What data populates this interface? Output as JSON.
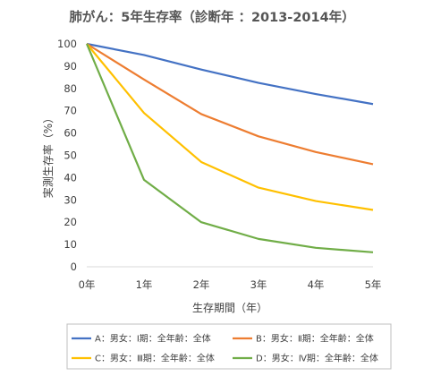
{
  "chart_data": {
    "type": "line",
    "title": "肺がん：5年生存率（診断年 ：2013-2014年）",
    "xlabel": "生存期間（年）",
    "ylabel": "実測生存率（%）",
    "categories": [
      "0年",
      "1年",
      "2年",
      "3年",
      "4年",
      "5年"
    ],
    "x": [
      0,
      1,
      2,
      3,
      4,
      5
    ],
    "yticks": [
      "0",
      "10",
      "20",
      "30",
      "40",
      "50",
      "60",
      "70",
      "80",
      "90",
      "100"
    ],
    "ylim": [
      0,
      100
    ],
    "grid": false,
    "legend_position": "bottom",
    "series": [
      {
        "name": "A：男女：Ⅰ期：全年齢：全体",
        "color": "#4472C4",
        "values": [
          100,
          95,
          88.5,
          82.5,
          77.5,
          73
        ]
      },
      {
        "name": "B：男女：Ⅱ期：全年齢：全体",
        "color": "#ED7D31",
        "values": [
          100,
          84,
          68.5,
          58.5,
          51.5,
          46
        ]
      },
      {
        "name": "C：男女：Ⅲ期：全年齢：全体",
        "color": "#FFC000",
        "values": [
          100,
          69,
          47,
          35.5,
          29.5,
          25.5
        ]
      },
      {
        "name": "D：男女：Ⅳ期：全年齢：全体",
        "color": "#70AD47",
        "values": [
          100,
          39,
          20,
          12.5,
          8.5,
          6.5
        ]
      }
    ]
  }
}
